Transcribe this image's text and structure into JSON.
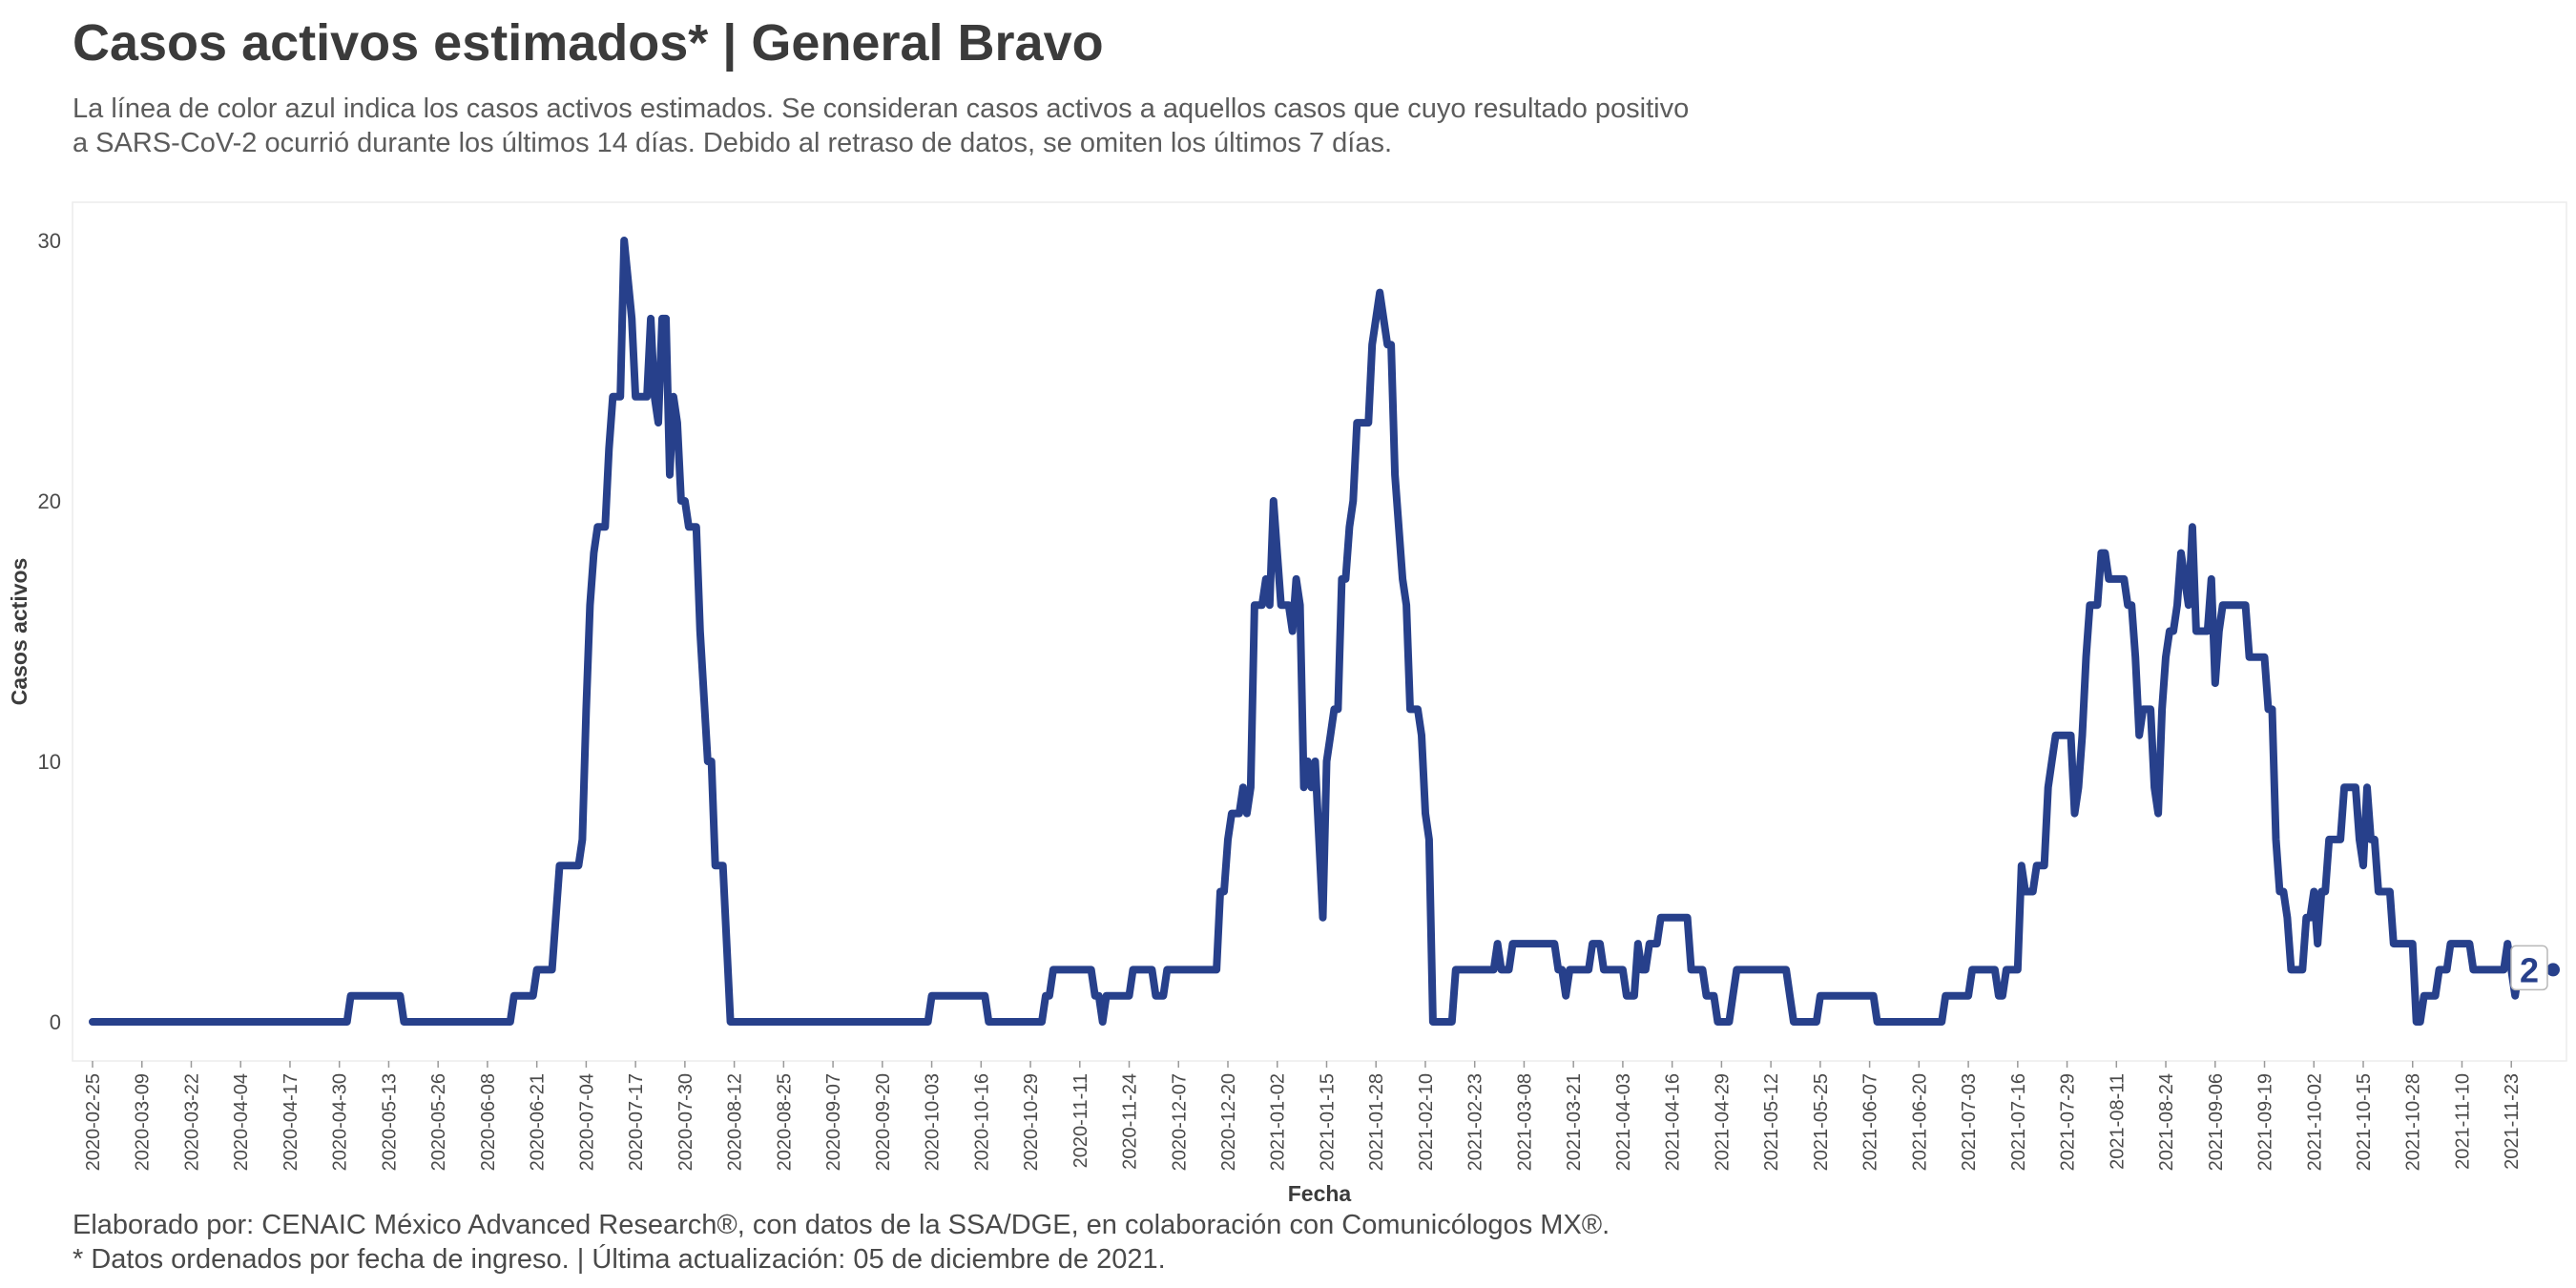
{
  "title": "Casos activos estimados* | General Bravo",
  "subtitle_line1": "La línea de color azul indica los casos activos estimados. Se consideran casos activos a aquellos casos que cuyo resultado positivo",
  "subtitle_line2": "a SARS-CoV-2 ocurrió durante los últimos 14 días. Debido al retraso de datos, se omiten los últimos 7 días.",
  "caption_line1": "Elaborado por: CENAIC México Advanced Research®, con datos de la SSA/DGE, en colaboración con Comunicólogos MX®.",
  "caption_line2": "* Datos ordenados por fecha de ingreso. | Última actualización: 05 de diciembre de 2021.",
  "colors": {
    "line": "#27408b",
    "grid": "#e6e6e6",
    "text": "#3c3c3c"
  },
  "chart_data": {
    "type": "line",
    "xlabel": "Fecha",
    "ylabel": "Casos activos",
    "ylim": [
      0,
      30
    ],
    "yticks": [
      0,
      10,
      20,
      30
    ],
    "xlim": [
      "2020-02-25",
      "2021-12-04"
    ],
    "xticks": [
      "2020-02-25",
      "2020-03-09",
      "2020-03-22",
      "2020-04-04",
      "2020-04-17",
      "2020-04-30",
      "2020-05-13",
      "2020-05-26",
      "2020-06-08",
      "2020-06-21",
      "2020-07-04",
      "2020-07-17",
      "2020-07-30",
      "2020-08-12",
      "2020-08-25",
      "2020-09-07",
      "2020-09-20",
      "2020-10-03",
      "2020-10-16",
      "2020-10-29",
      "2020-11-11",
      "2020-11-24",
      "2020-12-07",
      "2020-12-20",
      "2021-01-02",
      "2021-01-15",
      "2021-01-28",
      "2021-02-10",
      "2021-02-23",
      "2021-03-08",
      "2021-03-21",
      "2021-04-03",
      "2021-04-16",
      "2021-04-29",
      "2021-05-12",
      "2021-05-25",
      "2021-06-07",
      "2021-06-20",
      "2021-07-03",
      "2021-07-16",
      "2021-07-29",
      "2021-08-11",
      "2021-08-24",
      "2021-09-06",
      "2021-09-19",
      "2021-10-02",
      "2021-10-15",
      "2021-10-28",
      "2021-11-10",
      "2021-11-23"
    ],
    "grid": false,
    "end_label": "2",
    "series": [
      {
        "points": [
          [
            "2020-02-25",
            0
          ],
          [
            "2020-05-02",
            0
          ],
          [
            "2020-05-03",
            1
          ],
          [
            "2020-05-16",
            1
          ],
          [
            "2020-05-17",
            0
          ],
          [
            "2020-06-14",
            0
          ],
          [
            "2020-06-15",
            1
          ],
          [
            "2020-06-20",
            1
          ],
          [
            "2020-06-21",
            2
          ],
          [
            "2020-06-25",
            2
          ],
          [
            "2020-06-27",
            6
          ],
          [
            "2020-07-02",
            6
          ],
          [
            "2020-07-03",
            7
          ],
          [
            "2020-07-04",
            12
          ],
          [
            "2020-07-05",
            16
          ],
          [
            "2020-07-06",
            18
          ],
          [
            "2020-07-07",
            19
          ],
          [
            "2020-07-09",
            19
          ],
          [
            "2020-07-10",
            22
          ],
          [
            "2020-07-11",
            24
          ],
          [
            "2020-07-13",
            24
          ],
          [
            "2020-07-14",
            30
          ],
          [
            "2020-07-16",
            27
          ],
          [
            "2020-07-17",
            24
          ],
          [
            "2020-07-20",
            24
          ],
          [
            "2020-07-21",
            27
          ],
          [
            "2020-07-22",
            24
          ],
          [
            "2020-07-23",
            23
          ],
          [
            "2020-07-24",
            27
          ],
          [
            "2020-07-25",
            27
          ],
          [
            "2020-07-26",
            21
          ],
          [
            "2020-07-27",
            24
          ],
          [
            "2020-07-28",
            23
          ],
          [
            "2020-07-29",
            20
          ],
          [
            "2020-07-30",
            20
          ],
          [
            "2020-07-31",
            19
          ],
          [
            "2020-08-02",
            19
          ],
          [
            "2020-08-03",
            15
          ],
          [
            "2020-08-05",
            10
          ],
          [
            "2020-08-06",
            10
          ],
          [
            "2020-08-07",
            6
          ],
          [
            "2020-08-09",
            6
          ],
          [
            "2020-08-11",
            0
          ],
          [
            "2020-10-02",
            0
          ],
          [
            "2020-10-03",
            1
          ],
          [
            "2020-10-17",
            1
          ],
          [
            "2020-10-18",
            0
          ],
          [
            "2020-11-01",
            0
          ],
          [
            "2020-11-02",
            1
          ],
          [
            "2020-11-03",
            1
          ],
          [
            "2020-11-04",
            2
          ],
          [
            "2020-11-14",
            2
          ],
          [
            "2020-11-15",
            1
          ],
          [
            "2020-11-16",
            1
          ],
          [
            "2020-11-17",
            0
          ],
          [
            "2020-11-18",
            1
          ],
          [
            "2020-11-24",
            1
          ],
          [
            "2020-11-25",
            2
          ],
          [
            "2020-11-30",
            2
          ],
          [
            "2020-12-01",
            1
          ],
          [
            "2020-12-03",
            1
          ],
          [
            "2020-12-04",
            2
          ],
          [
            "2020-12-17",
            2
          ],
          [
            "2020-12-18",
            5
          ],
          [
            "2020-12-19",
            5
          ],
          [
            "2020-12-20",
            7
          ],
          [
            "2020-12-21",
            8
          ],
          [
            "2020-12-23",
            8
          ],
          [
            "2020-12-24",
            9
          ],
          [
            "2020-12-25",
            8
          ],
          [
            "2020-12-26",
            9
          ],
          [
            "2020-12-27",
            16
          ],
          [
            "2020-12-29",
            16
          ],
          [
            "2020-12-30",
            17
          ],
          [
            "2020-12-31",
            16
          ],
          [
            "2021-01-01",
            20
          ],
          [
            "2021-01-02",
            18
          ],
          [
            "2021-01-03",
            16
          ],
          [
            "2021-01-05",
            16
          ],
          [
            "2021-01-06",
            15
          ],
          [
            "2021-01-07",
            17
          ],
          [
            "2021-01-08",
            16
          ],
          [
            "2021-01-09",
            9
          ],
          [
            "2021-01-10",
            10
          ],
          [
            "2021-01-11",
            9
          ],
          [
            "2021-01-12",
            10
          ],
          [
            "2021-01-13",
            7
          ],
          [
            "2021-01-14",
            4
          ],
          [
            "2021-01-15",
            10
          ],
          [
            "2021-01-16",
            11
          ],
          [
            "2021-01-17",
            12
          ],
          [
            "2021-01-18",
            12
          ],
          [
            "2021-01-19",
            17
          ],
          [
            "2021-01-20",
            17
          ],
          [
            "2021-01-21",
            19
          ],
          [
            "2021-01-22",
            20
          ],
          [
            "2021-01-23",
            23
          ],
          [
            "2021-01-26",
            23
          ],
          [
            "2021-01-27",
            26
          ],
          [
            "2021-01-29",
            28
          ],
          [
            "2021-01-30",
            27
          ],
          [
            "2021-01-31",
            26
          ],
          [
            "2021-02-01",
            26
          ],
          [
            "2021-02-02",
            21
          ],
          [
            "2021-02-04",
            17
          ],
          [
            "2021-02-05",
            16
          ],
          [
            "2021-02-06",
            12
          ],
          [
            "2021-02-08",
            12
          ],
          [
            "2021-02-09",
            11
          ],
          [
            "2021-02-10",
            8
          ],
          [
            "2021-02-11",
            7
          ],
          [
            "2021-02-12",
            0
          ],
          [
            "2021-02-17",
            0
          ],
          [
            "2021-02-18",
            2
          ],
          [
            "2021-02-28",
            2
          ],
          [
            "2021-03-01",
            3
          ],
          [
            "2021-03-02",
            2
          ],
          [
            "2021-03-04",
            2
          ],
          [
            "2021-03-05",
            3
          ],
          [
            "2021-03-16",
            3
          ],
          [
            "2021-03-17",
            2
          ],
          [
            "2021-03-18",
            2
          ],
          [
            "2021-03-19",
            1
          ],
          [
            "2021-03-20",
            2
          ],
          [
            "2021-03-25",
            2
          ],
          [
            "2021-03-26",
            3
          ],
          [
            "2021-03-28",
            3
          ],
          [
            "2021-03-29",
            2
          ],
          [
            "2021-04-03",
            2
          ],
          [
            "2021-04-04",
            1
          ],
          [
            "2021-04-06",
            1
          ],
          [
            "2021-04-07",
            3
          ],
          [
            "2021-04-08",
            2
          ],
          [
            "2021-04-09",
            2
          ],
          [
            "2021-04-10",
            3
          ],
          [
            "2021-04-12",
            3
          ],
          [
            "2021-04-13",
            4
          ],
          [
            "2021-04-20",
            4
          ],
          [
            "2021-04-21",
            2
          ],
          [
            "2021-04-24",
            2
          ],
          [
            "2021-04-25",
            1
          ],
          [
            "2021-04-27",
            1
          ],
          [
            "2021-04-28",
            0
          ],
          [
            "2021-05-01",
            0
          ],
          [
            "2021-05-02",
            1
          ],
          [
            "2021-05-03",
            2
          ],
          [
            "2021-05-16",
            2
          ],
          [
            "2021-05-17",
            1
          ],
          [
            "2021-05-18",
            0
          ],
          [
            "2021-05-24",
            0
          ],
          [
            "2021-05-25",
            1
          ],
          [
            "2021-06-08",
            1
          ],
          [
            "2021-06-09",
            0
          ],
          [
            "2021-06-26",
            0
          ],
          [
            "2021-06-27",
            1
          ],
          [
            "2021-07-03",
            1
          ],
          [
            "2021-07-04",
            2
          ],
          [
            "2021-07-10",
            2
          ],
          [
            "2021-07-11",
            1
          ],
          [
            "2021-07-12",
            1
          ],
          [
            "2021-07-13",
            2
          ],
          [
            "2021-07-16",
            2
          ],
          [
            "2021-07-17",
            6
          ],
          [
            "2021-07-18",
            5
          ],
          [
            "2021-07-20",
            5
          ],
          [
            "2021-07-21",
            6
          ],
          [
            "2021-07-23",
            6
          ],
          [
            "2021-07-24",
            9
          ],
          [
            "2021-07-25",
            10
          ],
          [
            "2021-07-26",
            11
          ],
          [
            "2021-07-30",
            11
          ],
          [
            "2021-07-31",
            8
          ],
          [
            "2021-08-01",
            9
          ],
          [
            "2021-08-02",
            11
          ],
          [
            "2021-08-03",
            14
          ],
          [
            "2021-08-04",
            16
          ],
          [
            "2021-08-06",
            16
          ],
          [
            "2021-08-07",
            18
          ],
          [
            "2021-08-08",
            18
          ],
          [
            "2021-08-09",
            17
          ],
          [
            "2021-08-13",
            17
          ],
          [
            "2021-08-14",
            16
          ],
          [
            "2021-08-15",
            16
          ],
          [
            "2021-08-16",
            14
          ],
          [
            "2021-08-17",
            11
          ],
          [
            "2021-08-18",
            12
          ],
          [
            "2021-08-20",
            12
          ],
          [
            "2021-08-21",
            9
          ],
          [
            "2021-08-22",
            8
          ],
          [
            "2021-08-23",
            12
          ],
          [
            "2021-08-24",
            14
          ],
          [
            "2021-08-25",
            15
          ],
          [
            "2021-08-26",
            15
          ],
          [
            "2021-08-27",
            16
          ],
          [
            "2021-08-28",
            18
          ],
          [
            "2021-08-29",
            17
          ],
          [
            "2021-08-30",
            16
          ],
          [
            "2021-08-31",
            19
          ],
          [
            "2021-09-01",
            15
          ],
          [
            "2021-09-04",
            15
          ],
          [
            "2021-09-05",
            17
          ],
          [
            "2021-09-06",
            13
          ],
          [
            "2021-09-07",
            15
          ],
          [
            "2021-09-08",
            16
          ],
          [
            "2021-09-14",
            16
          ],
          [
            "2021-09-15",
            14
          ],
          [
            "2021-09-19",
            14
          ],
          [
            "2021-09-20",
            12
          ],
          [
            "2021-09-21",
            12
          ],
          [
            "2021-09-22",
            7
          ],
          [
            "2021-09-23",
            5
          ],
          [
            "2021-09-24",
            5
          ],
          [
            "2021-09-25",
            4
          ],
          [
            "2021-09-26",
            2
          ],
          [
            "2021-09-29",
            2
          ],
          [
            "2021-09-30",
            4
          ],
          [
            "2021-10-01",
            4
          ],
          [
            "2021-10-02",
            5
          ],
          [
            "2021-10-03",
            3
          ],
          [
            "2021-10-04",
            5
          ],
          [
            "2021-10-05",
            5
          ],
          [
            "2021-10-06",
            7
          ],
          [
            "2021-10-09",
            7
          ],
          [
            "2021-10-10",
            9
          ],
          [
            "2021-10-13",
            9
          ],
          [
            "2021-10-14",
            7
          ],
          [
            "2021-10-15",
            6
          ],
          [
            "2021-10-16",
            9
          ],
          [
            "2021-10-17",
            7
          ],
          [
            "2021-10-18",
            7
          ],
          [
            "2021-10-19",
            5
          ],
          [
            "2021-10-22",
            5
          ],
          [
            "2021-10-23",
            3
          ],
          [
            "2021-10-28",
            3
          ],
          [
            "2021-10-29",
            0
          ],
          [
            "2021-10-30",
            0
          ],
          [
            "2021-10-31",
            1
          ],
          [
            "2021-11-03",
            1
          ],
          [
            "2021-11-04",
            2
          ],
          [
            "2021-11-06",
            2
          ],
          [
            "2021-11-07",
            3
          ],
          [
            "2021-11-12",
            3
          ],
          [
            "2021-11-13",
            2
          ],
          [
            "2021-11-21",
            2
          ],
          [
            "2021-11-22",
            3
          ],
          [
            "2021-11-23",
            2
          ],
          [
            "2021-11-24",
            1
          ],
          [
            "2021-11-25",
            2
          ],
          [
            "2021-12-04",
            2
          ]
        ]
      }
    ]
  }
}
